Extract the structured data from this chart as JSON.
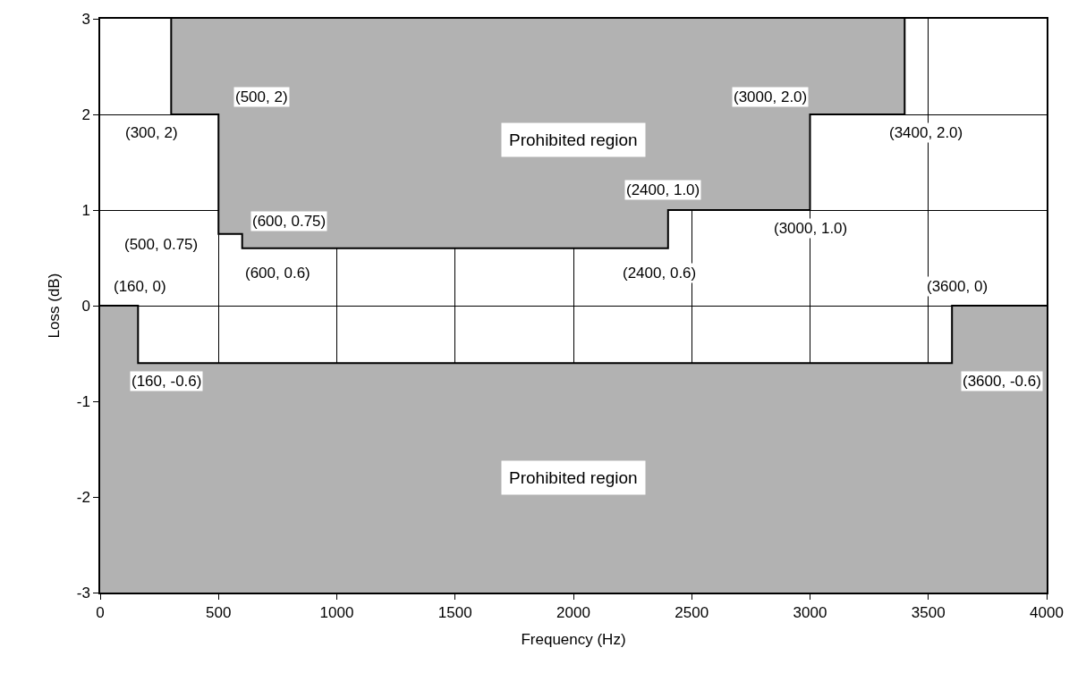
{
  "chart_data": {
    "type": "line",
    "xlabel": "Frequency (Hz)",
    "ylabel": "Loss (dB)",
    "xlim": [
      0,
      4000
    ],
    "xticks": [
      0,
      500,
      1000,
      1500,
      2000,
      2500,
      3000,
      3500,
      4000
    ],
    "ylim": [
      -3,
      3
    ],
    "yticks": [
      -3,
      -2,
      -1,
      0,
      1,
      2,
      3
    ],
    "grid": true,
    "marker": "none",
    "line_style": "solid",
    "series": [
      {
        "color": "#000000",
        "x": [
          300,
          300,
          500,
          500,
          600,
          600,
          2400,
          2400,
          3000,
          3000,
          3400,
          3400
        ],
        "values": [
          3,
          2,
          2,
          0.75,
          0.75,
          0.6,
          0.6,
          1.0,
          1.0,
          2.0,
          2.0,
          3
        ],
        "lower": [
          3,
          2,
          2,
          0.75,
          0.75,
          0.6,
          0.6,
          1.0,
          1.0,
          2.0,
          2.0,
          3
        ],
        "upper": [
          3,
          3,
          3,
          3,
          3,
          3,
          3,
          3,
          3,
          3,
          3,
          3
        ]
      },
      {
        "color": "#000000",
        "x": [
          0,
          160,
          160,
          3600,
          3600,
          4000
        ],
        "values": [
          0,
          0,
          -0.6,
          -0.6,
          0,
          0
        ],
        "lower": [
          -3,
          -3,
          -3,
          -3,
          -3,
          -3
        ],
        "upper": [
          0,
          0,
          -0.6,
          -0.6,
          0,
          0
        ]
      }
    ],
    "annotations": [
      "Prohibited region",
      "Prohibited region",
      {
        "text": "(300, 2)",
        "x": 300,
        "y": 2
      },
      {
        "text": "(500, 2)",
        "x": 500,
        "y": 2
      },
      {
        "text": "(500, 0.75)",
        "x": 500,
        "y": 0.75
      },
      {
        "text": "(600, 0.75)",
        "x": 600,
        "y": 0.75
      },
      {
        "text": "(600, 0.6)",
        "x": 600,
        "y": 0.6
      },
      {
        "text": "(2400, 1.0)",
        "x": 2400,
        "y": 1.0
      },
      {
        "text": "(2400, 0.6)",
        "x": 2400,
        "y": 0.6
      },
      {
        "text": "(3000, 2.0)",
        "x": 3000,
        "y": 2.0
      },
      {
        "text": "(3000, 1.0)",
        "x": 3000,
        "y": 1.0
      },
      {
        "text": "(3400, 2.0)",
        "x": 3400,
        "y": 2.0
      },
      {
        "text": "(160, 0)",
        "x": 160,
        "y": 0
      },
      {
        "text": "(160, -0.6)",
        "x": 160,
        "y": -0.6
      },
      {
        "text": "(3600, 0)",
        "x": 3600,
        "y": 0
      },
      {
        "text": "(3600, -0.6)",
        "x": 3600,
        "y": -0.6
      }
    ]
  }
}
